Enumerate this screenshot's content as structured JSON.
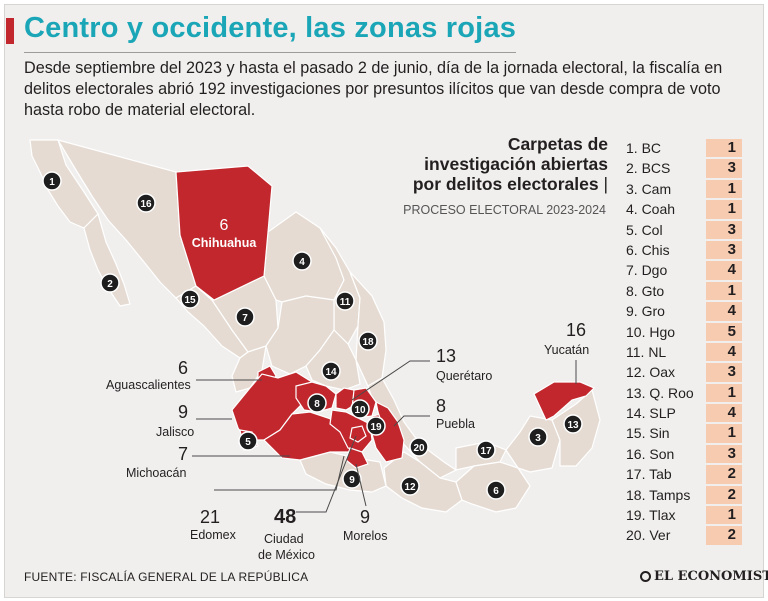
{
  "colors": {
    "highlight": "#c1272d",
    "base": "#e5dbd2",
    "border": "#ffffff",
    "marker": "#1e1e1e",
    "value_bg": "#f6cbb0",
    "title": "#1aa6b7"
  },
  "title": "Centro y occidente, las zonas rojas",
  "intro": "Desde septiembre del 2023 y hasta el pasado 2 de junio, día de la jornada electoral, la fiscalía en delitos electorales abrió 192 investigaciones por presuntos ilícitos que van desde compra de voto hasta robo de material electoral.",
  "panel": {
    "title_line1": "Carpetas de",
    "title_line2": "investigación abiertas",
    "title_line3": "por delitos electorales",
    "pipe": "|",
    "subtitle": "PROCESO ELECTORAL 2023-2024"
  },
  "table": [
    {
      "label": "1. BC",
      "value": "1"
    },
    {
      "label": "2. BCS",
      "value": "3"
    },
    {
      "label": "3. Cam",
      "value": "1"
    },
    {
      "label": "4. Coah",
      "value": "1"
    },
    {
      "label": "5. Col",
      "value": "3"
    },
    {
      "label": "6. Chis",
      "value": "3"
    },
    {
      "label": "7. Dgo",
      "value": "4"
    },
    {
      "label": "8. Gto",
      "value": "1"
    },
    {
      "label": "9. Gro",
      "value": "4"
    },
    {
      "label": "10. Hgo",
      "value": "5"
    },
    {
      "label": "11. NL",
      "value": "4"
    },
    {
      "label": "12. Oax",
      "value": "3"
    },
    {
      "label": "13. Q. Roo",
      "value": "1"
    },
    {
      "label": "14. SLP",
      "value": "4"
    },
    {
      "label": "15. Sin",
      "value": "1"
    },
    {
      "label": "16. Son",
      "value": "3"
    },
    {
      "label": "17. Tab",
      "value": "2"
    },
    {
      "label": "18. Tamps",
      "value": "2"
    },
    {
      "label": "19. Tlax",
      "value": "1"
    },
    {
      "label": "20. Ver",
      "value": "2"
    }
  ],
  "map": {
    "chihuahua_value": "6",
    "chihuahua_label": "Chihuahua",
    "markers": [
      "1",
      "2",
      "3",
      "4",
      "5",
      "6",
      "7",
      "8",
      "9",
      "10",
      "11",
      "12",
      "13",
      "14",
      "15",
      "16",
      "17",
      "18",
      "19",
      "20"
    ],
    "callouts": {
      "aguascalientes": {
        "value": "6",
        "label": "Aguascalientes"
      },
      "jalisco": {
        "value": "9",
        "label": "Jalisco"
      },
      "michoacan": {
        "value": "7",
        "label": "Michoacán"
      },
      "edomex": {
        "value": "21",
        "label": "Edomex"
      },
      "cdmx": {
        "value": "48",
        "label_line1": "Ciudad",
        "label_line2": "de México"
      },
      "morelos": {
        "value": "9",
        "label": "Morelos"
      },
      "queretaro": {
        "value": "13",
        "label": "Querétaro"
      },
      "puebla": {
        "value": "8",
        "label": "Puebla"
      },
      "yucatan": {
        "value": "16",
        "label": "Yucatán"
      }
    }
  },
  "source": "FUENTE: FISCALÍA GENERAL DE LA REPÚBLICA",
  "logo": "EL ECONOMISTA"
}
